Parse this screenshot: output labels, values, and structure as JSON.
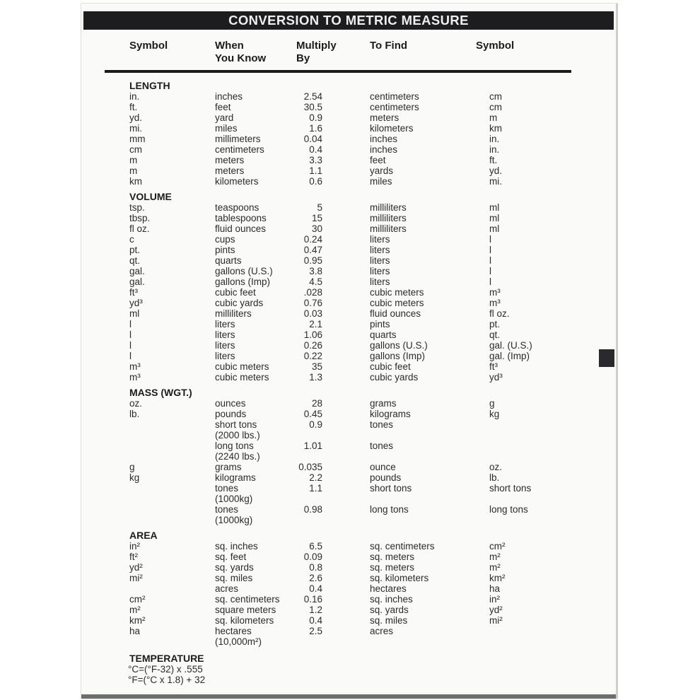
{
  "title": "CONVERSION TO METRIC MEASURE",
  "columns": [
    {
      "line1": "Symbol",
      "line2": ""
    },
    {
      "line1": "When",
      "line2": "You Know"
    },
    {
      "line1": "Multiply",
      "line2": "By"
    },
    {
      "line1": "To Find",
      "line2": ""
    },
    {
      "line1": "Symbol",
      "line2": ""
    }
  ],
  "sections": [
    {
      "name": "LENGTH",
      "rows": [
        [
          "in.",
          "inches",
          "2.54",
          "centimeters",
          "cm"
        ],
        [
          "ft.",
          "feet",
          "30.5",
          "centimeters",
          "cm"
        ],
        [
          "yd.",
          "yard",
          "0.9",
          "meters",
          "m"
        ],
        [
          "mi.",
          "miles",
          "1.6",
          "kilometers",
          "km"
        ],
        [
          "mm",
          "millimeters",
          "0.04",
          "inches",
          "in."
        ],
        [
          "cm",
          "centimeters",
          "0.4",
          "inches",
          "in."
        ],
        [
          "m",
          "meters",
          "3.3",
          "feet",
          "ft."
        ],
        [
          "m",
          "meters",
          "1.1",
          "yards",
          "yd."
        ],
        [
          "km",
          "kilometers",
          "0.6",
          "miles",
          "mi."
        ]
      ]
    },
    {
      "name": "VOLUME",
      "rows": [
        [
          "tsp.",
          "teaspoons",
          "5",
          "milliliters",
          "ml"
        ],
        [
          "tbsp.",
          "tablespoons",
          "15",
          "milliliters",
          "ml"
        ],
        [
          "fl oz.",
          "fluid ounces",
          "30",
          "milliliters",
          "ml"
        ],
        [
          "c",
          "cups",
          "0.24",
          "liters",
          "l"
        ],
        [
          "pt.",
          "pints",
          "0.47",
          "liters",
          "l"
        ],
        [
          "qt.",
          "quarts",
          "0.95",
          "liters",
          "l"
        ],
        [
          "gal.",
          "gallons (U.S.)",
          "3.8",
          "liters",
          "l"
        ],
        [
          "gal.",
          "gallons (Imp)",
          "4.5",
          "liters",
          "l"
        ],
        [
          "ft³",
          "cubic feet",
          ".028",
          "cubic meters",
          "m³"
        ],
        [
          "yd³",
          "cubic yards",
          "0.76",
          "cubic meters",
          "m³"
        ],
        [
          "ml",
          "milliliters",
          "0.03",
          "fluid ounces",
          "fl oz."
        ],
        [
          "l",
          "liters",
          "2.1",
          "pints",
          "pt."
        ],
        [
          "l",
          "liters",
          "1.06",
          "quarts",
          "qt."
        ],
        [
          "l",
          "liters",
          "0.26",
          "gallons (U.S.)",
          "gal. (U.S.)"
        ],
        [
          "l",
          "liters",
          "0.22",
          "gallons (Imp)",
          "gal. (Imp)"
        ],
        [
          "m³",
          "cubic meters",
          "35",
          "cubic feet",
          "ft³"
        ],
        [
          "m³",
          "cubic meters",
          "1.3",
          "cubic yards",
          "yd³"
        ]
      ]
    },
    {
      "name": "MASS (WGT.)",
      "rows": [
        [
          "oz.",
          "ounces",
          "28",
          "grams",
          "g"
        ],
        [
          "lb.",
          "pounds",
          "0.45",
          "kilograms",
          "kg"
        ],
        [
          "",
          "short tons",
          "0.9",
          "tones",
          ""
        ],
        [
          "",
          "(2000 lbs.)",
          "",
          "",
          ""
        ],
        [
          "",
          "long tons",
          "1.01",
          "tones",
          ""
        ],
        [
          "",
          "(2240 lbs.)",
          "",
          "",
          ""
        ],
        [
          "g",
          "grams",
          "0.035",
          "ounce",
          "oz."
        ],
        [
          "kg",
          "kilograms",
          "2.2",
          "pounds",
          "lb."
        ],
        [
          "",
          "tones",
          "1.1",
          "short tons",
          "short tons"
        ],
        [
          "",
          "(1000kg)",
          "",
          "",
          ""
        ],
        [
          "",
          "tones",
          "0.98",
          "long tons",
          "long tons"
        ],
        [
          "",
          "(1000kg)",
          "",
          "",
          ""
        ]
      ]
    },
    {
      "name": "AREA",
      "rows": [
        [
          "in²",
          "sq. inches",
          "6.5",
          "sq. centimeters",
          "cm²"
        ],
        [
          "ft²",
          "sq. feet",
          "0.09",
          "sq. meters",
          "m²"
        ],
        [
          "yd²",
          "sq. yards",
          "0.8",
          "sq. meters",
          "m²"
        ],
        [
          "mi²",
          "sq. miles",
          "2.6",
          "sq. kilometers",
          "km²"
        ],
        [
          "",
          "acres",
          "0.4",
          "hectares",
          "ha"
        ],
        [
          "cm²",
          "sq. centimeters",
          "0.16",
          "sq. inches",
          "in²"
        ],
        [
          "m²",
          "square meters",
          "1.2",
          "sq. yards",
          "yd²"
        ],
        [
          "km²",
          "sq. kilometers",
          "0.4",
          "sq. miles",
          "mi²"
        ],
        [
          "ha",
          "hectares",
          "2.5",
          "acres",
          ""
        ],
        [
          "",
          "(10,000m²)",
          "",
          "",
          ""
        ]
      ]
    }
  ],
  "temperature": {
    "name": "TEMPERATURE",
    "lines": [
      "°C=(°F-32) x .555",
      "°F=(°C x 1.8) + 32"
    ]
  },
  "colors": {
    "page_bg": "#fafaf8",
    "title_bar_bg": "#1d1d20",
    "title_text": "#efefef",
    "body_text": "#2b2b2b",
    "bottom_edge": "#6c6e70",
    "side_tab": "#2a2a2e"
  }
}
